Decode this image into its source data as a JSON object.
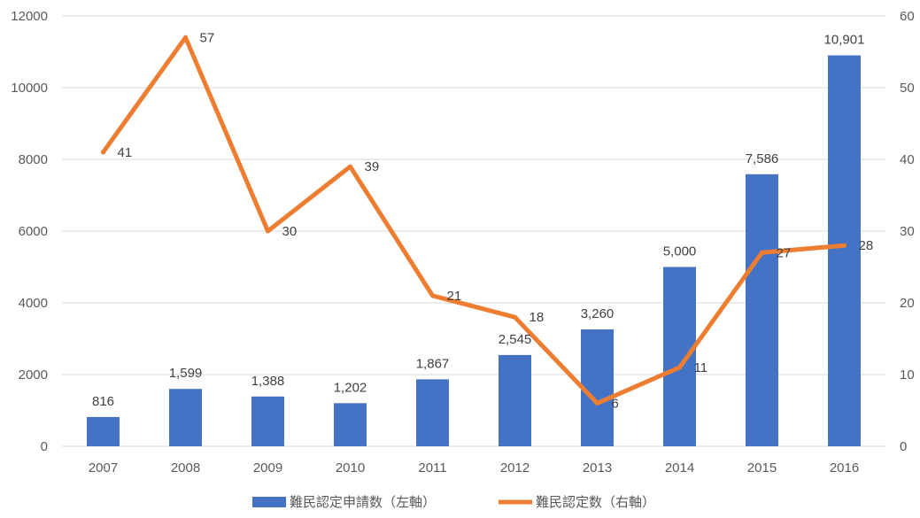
{
  "chart_data": {
    "type": "bar",
    "categories": [
      "2007",
      "2008",
      "2009",
      "2010",
      "2011",
      "2012",
      "2013",
      "2014",
      "2015",
      "2016"
    ],
    "series": [
      {
        "name": "難民認定申請数（左軸）",
        "type": "bar",
        "axis": "left",
        "color": "#4472c4",
        "values": [
          816,
          1599,
          1388,
          1202,
          1867,
          2545,
          3260,
          5000,
          7586,
          10901
        ],
        "labels": [
          "816",
          "1,599",
          "1,388",
          "1,202",
          "1,867",
          "2,545",
          "3,260",
          "5,000",
          "7,586",
          "10,901"
        ]
      },
      {
        "name": "難民認定数（右軸）",
        "type": "line",
        "axis": "right",
        "color": "#ed7d31",
        "values": [
          41,
          57,
          30,
          39,
          21,
          18,
          6,
          11,
          27,
          28
        ],
        "labels": [
          "41",
          "57",
          "30",
          "39",
          "21",
          "18",
          "6",
          "11",
          "27",
          "28"
        ]
      }
    ],
    "y_left": {
      "min": 0,
      "max": 12000,
      "ticks": [
        "0",
        "2000",
        "4000",
        "6000",
        "8000",
        "10000",
        "12000"
      ]
    },
    "y_right": {
      "min": 0,
      "max": 60,
      "ticks": [
        "0",
        "10",
        "20",
        "30",
        "40",
        "50",
        "60"
      ]
    },
    "title": "",
    "xlabel": "",
    "ylabel": "",
    "grid": true,
    "legend": "bottom"
  }
}
